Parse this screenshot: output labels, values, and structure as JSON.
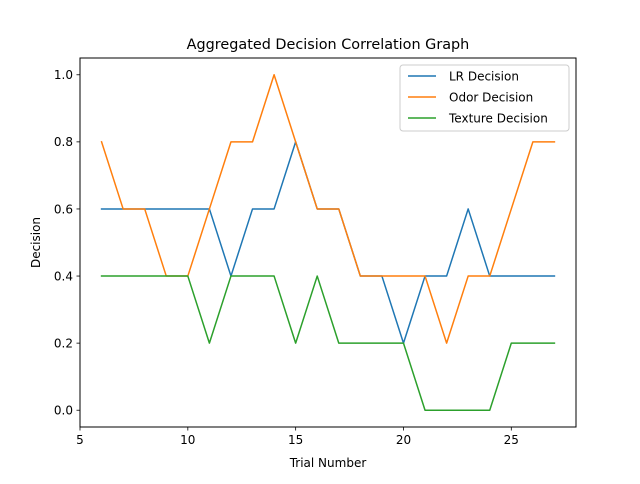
{
  "chart_data": {
    "type": "line",
    "title": "Aggregated Decision Correlation Graph",
    "xlabel": "Trial Number",
    "ylabel": "Decision",
    "xlim": [
      5,
      28
    ],
    "ylim": [
      -0.05,
      1.05
    ],
    "xticks": [
      5,
      10,
      15,
      20,
      25
    ],
    "yticks": [
      0.0,
      0.2,
      0.4,
      0.6,
      0.8,
      1.0
    ],
    "xtick_labels": [
      "5",
      "10",
      "15",
      "20",
      "25"
    ],
    "ytick_labels": [
      "0.0",
      "0.2",
      "0.4",
      "0.6",
      "0.8",
      "1.0"
    ],
    "grid": false,
    "legend_position": "top-right",
    "x": [
      6,
      7,
      8,
      9,
      10,
      11,
      12,
      13,
      14,
      15,
      16,
      17,
      18,
      19,
      20,
      21,
      22,
      23,
      24,
      25,
      26,
      27
    ],
    "series": [
      {
        "name": "LR Decision",
        "color": "#1f77b4",
        "values": [
          0.6,
          0.6,
          0.6,
          0.6,
          0.6,
          0.6,
          0.4,
          0.6,
          0.6,
          0.8,
          0.6,
          0.6,
          0.4,
          0.4,
          0.2,
          0.4,
          0.4,
          0.6,
          0.4,
          0.4,
          0.4,
          0.4
        ]
      },
      {
        "name": "Odor Decision",
        "color": "#ff7f0e",
        "values": [
          0.8,
          0.6,
          0.6,
          0.4,
          0.4,
          0.6,
          0.8,
          0.8,
          1.0,
          0.8,
          0.6,
          0.6,
          0.4,
          0.4,
          0.4,
          0.4,
          0.2,
          0.4,
          0.4,
          0.6,
          0.8,
          0.8
        ]
      },
      {
        "name": "Texture Decision",
        "color": "#2ca02c",
        "values": [
          0.4,
          0.4,
          0.4,
          0.4,
          0.4,
          0.2,
          0.4,
          0.4,
          0.4,
          0.2,
          0.4,
          0.2,
          0.2,
          0.2,
          0.2,
          0.0,
          0.0,
          0.0,
          0.0,
          0.2,
          0.2,
          0.2
        ]
      }
    ]
  }
}
